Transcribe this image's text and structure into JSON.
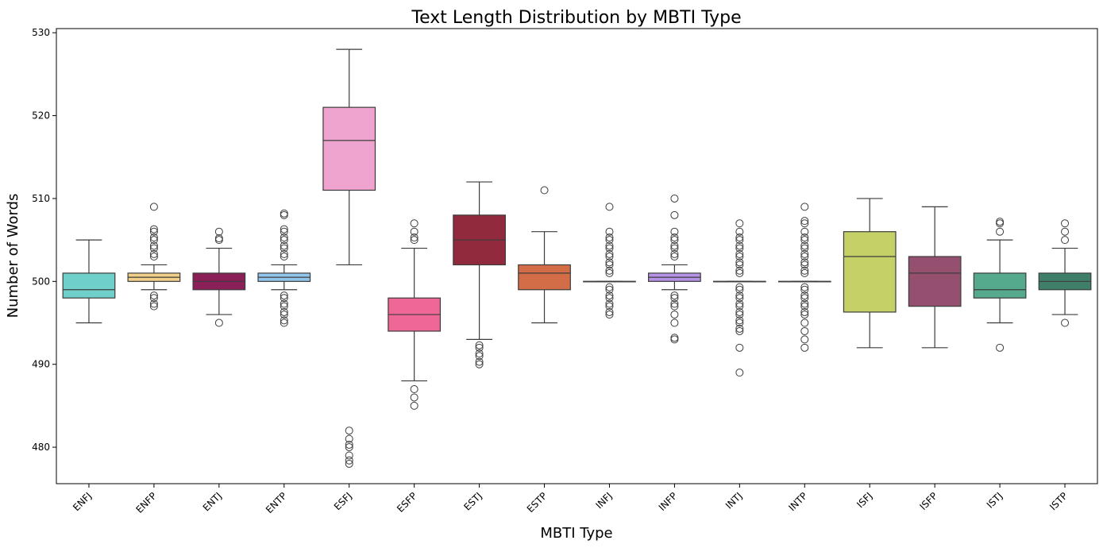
{
  "chart_data": {
    "type": "box",
    "title": "Text Length Distribution by MBTI Type",
    "xlabel": "MBTI Type",
    "ylabel": "Number of Words",
    "ylim": [
      475.6,
      530.5
    ],
    "yticks": [
      480,
      490,
      500,
      510,
      520,
      530
    ],
    "categories": [
      "ENFJ",
      "ENFP",
      "ENTJ",
      "ENTP",
      "ESFJ",
      "ESFP",
      "ESTJ",
      "ESTP",
      "INFJ",
      "INFP",
      "INTJ",
      "INTP",
      "ISFJ",
      "ISFP",
      "ISTJ",
      "ISTP"
    ],
    "boxes": [
      {
        "label": "ENFJ",
        "color": "#6fcfc9",
        "whisker_low": 495,
        "q1": 498,
        "median": 499,
        "q3": 501,
        "whisker_high": 505,
        "outliers": []
      },
      {
        "label": "ENFP",
        "color": "#f3d08a",
        "whisker_low": 499,
        "q1": 500,
        "median": 500.5,
        "q3": 501,
        "whisker_high": 502,
        "outliers": [
          497,
          497.3,
          498,
          498.3,
          503,
          503.3,
          504,
          504.3,
          505,
          505.3,
          506,
          506.3,
          509
        ]
      },
      {
        "label": "ENTJ",
        "color": "#8b1f57",
        "whisker_low": 496,
        "q1": 499,
        "median": 500,
        "q3": 501,
        "whisker_high": 504,
        "outliers": [
          495,
          505,
          505.2,
          506
        ]
      },
      {
        "label": "ENTP",
        "color": "#92c5ec",
        "whisker_low": 499,
        "q1": 500,
        "median": 500.5,
        "q3": 501,
        "whisker_high": 502,
        "outliers": [
          495,
          495.3,
          496,
          496.3,
          497,
          497.3,
          498,
          498.3,
          503,
          503.3,
          504,
          504.3,
          505,
          505.3,
          506,
          506.3,
          508,
          508.2
        ]
      },
      {
        "label": "ESFJ",
        "color": "#eea4cf",
        "whisker_low": 502,
        "q1": 511,
        "median": 517,
        "q3": 521,
        "whisker_high": 528,
        "outliers": [
          478,
          478.4,
          479,
          480,
          480.3,
          481,
          482
        ]
      },
      {
        "label": "ESFP",
        "color": "#ef6797",
        "whisker_low": 488,
        "q1": 494,
        "median": 496,
        "q3": 498,
        "whisker_high": 504,
        "outliers": [
          485,
          486,
          487,
          505,
          505.3,
          506,
          507
        ]
      },
      {
        "label": "ESTJ",
        "color": "#922a3d",
        "whisker_low": 493,
        "q1": 502,
        "median": 505,
        "q3": 508,
        "whisker_high": 512,
        "outliers": [
          490,
          490.3,
          491,
          491.3,
          492,
          492.3
        ]
      },
      {
        "label": "ESTP",
        "color": "#d26d47",
        "whisker_low": 495,
        "q1": 499,
        "median": 501,
        "q3": 502,
        "whisker_high": 506,
        "outliers": [
          511
        ]
      },
      {
        "label": "INFJ",
        "color": "#cfe3f5",
        "whisker_low": 500,
        "q1": 500,
        "median": 500,
        "q3": 500,
        "whisker_high": 500,
        "outliers": [
          496,
          496.3,
          497,
          497.3,
          498,
          498.3,
          499,
          499.3,
          501,
          501.3,
          502,
          502.3,
          503,
          503.3,
          504,
          504.3,
          505,
          505.3,
          506,
          509
        ]
      },
      {
        "label": "INFP",
        "color": "#b592e6",
        "whisker_low": 499,
        "q1": 500,
        "median": 500.5,
        "q3": 501,
        "whisker_high": 502,
        "outliers": [
          493,
          493.2,
          495,
          496,
          497,
          497.3,
          498,
          498.3,
          503,
          503.3,
          504,
          504.3,
          505,
          505.3,
          506,
          508,
          510
        ]
      },
      {
        "label": "INTJ",
        "color": "#d9d9d9",
        "whisker_low": 500,
        "q1": 500,
        "median": 500,
        "q3": 500,
        "whisker_high": 500,
        "outliers": [
          489,
          492,
          494,
          494.3,
          495,
          495.3,
          496,
          496.3,
          497,
          497.3,
          498,
          498.3,
          499,
          499.3,
          501,
          501.3,
          502,
          502.3,
          503,
          503.3,
          504,
          504.3,
          505,
          505.3,
          506,
          507
        ]
      },
      {
        "label": "INTP",
        "color": "#d9d9d9",
        "whisker_low": 500,
        "q1": 500,
        "median": 500,
        "q3": 500,
        "whisker_high": 500,
        "outliers": [
          492,
          493,
          494,
          495,
          496,
          496.3,
          497,
          497.3,
          498,
          498.3,
          499,
          499.3,
          501,
          501.3,
          502,
          502.3,
          503,
          503.3,
          504,
          504.3,
          505,
          505.3,
          506,
          507,
          507.3,
          509
        ]
      },
      {
        "label": "ISFJ",
        "color": "#c5d167",
        "whisker_low": 492,
        "q1": 496.3,
        "median": 503,
        "q3": 506,
        "whisker_high": 510,
        "outliers": []
      },
      {
        "label": "ISFP",
        "color": "#96506f",
        "whisker_low": 492,
        "q1": 497,
        "median": 501,
        "q3": 503,
        "whisker_high": 509,
        "outliers": []
      },
      {
        "label": "ISTJ",
        "color": "#55a98c",
        "whisker_low": 495,
        "q1": 498,
        "median": 499,
        "q3": 501,
        "whisker_high": 505,
        "outliers": [
          492,
          506,
          507,
          507.2
        ]
      },
      {
        "label": "ISTP",
        "color": "#3f7e69",
        "whisker_low": 496,
        "q1": 499,
        "median": 500,
        "q3": 501,
        "whisker_high": 504,
        "outliers": [
          495,
          505,
          506,
          507
        ]
      }
    ]
  }
}
